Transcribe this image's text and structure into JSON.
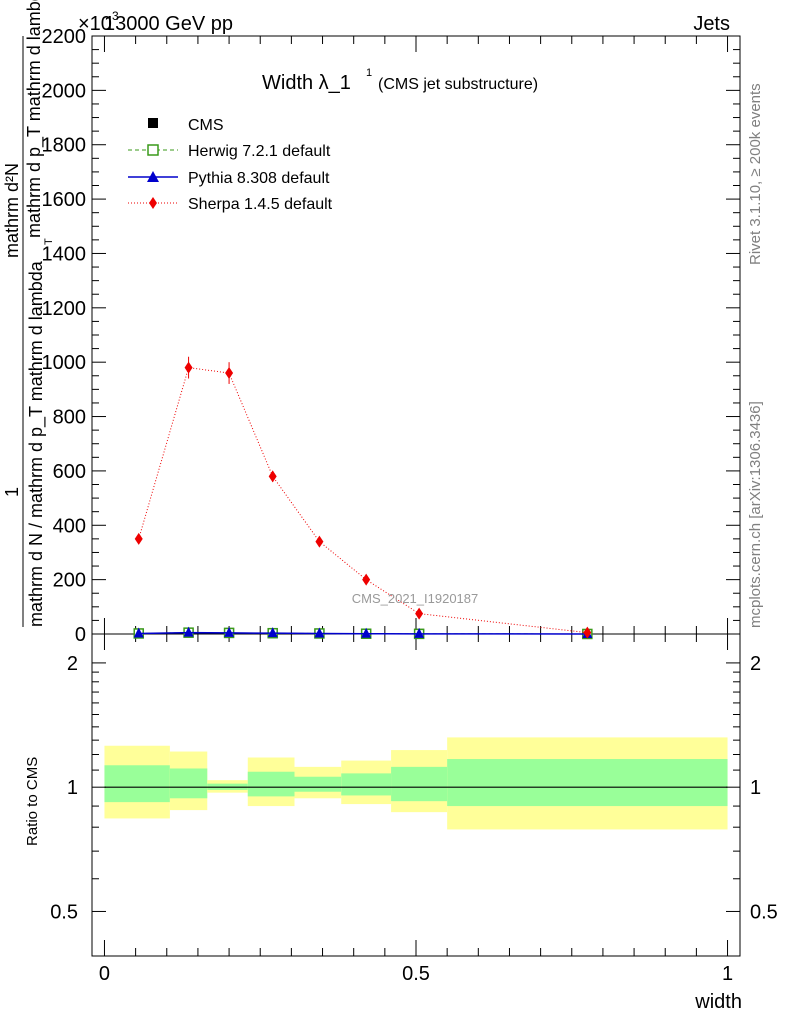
{
  "header": {
    "left": "13000 GeV pp",
    "right": "Jets",
    "exponent": "×10",
    "exponent_power": "3"
  },
  "side_text": {
    "rivet": "Rivet 3.1.10, ≥ 200k events",
    "mcplots": "mcplots.cern.ch [arXiv:1306.3436]"
  },
  "chart_data": [
    {
      "type": "line",
      "title": "Width λ_1",
      "title_sup": "1",
      "subtitle": "(CMS jet substructure)",
      "watermark": "CMS_2021_I1920187",
      "ylabel_main": "mathrm d N / mathrm d p_T mathrm d lambda",
      "ylabel_num": "mathrm d²N",
      "ylabel_den": "mathrm d p_T mathrm d lambda",
      "ylabel_one": "1",
      "ylabel_sub": "T",
      "ylim": [
        0,
        2200
      ],
      "y_scale_note": "×10^3",
      "yticks": [
        0,
        200,
        400,
        600,
        800,
        1000,
        1200,
        1400,
        1600,
        1800,
        2000,
        2200
      ],
      "ytick_labels": [
        "0",
        "200",
        "400",
        "600",
        "800",
        "1000",
        "1200",
        "1400",
        "1600",
        "1800",
        "2000",
        "2200"
      ],
      "xlim": [
        -0.02,
        1.02
      ],
      "series": [
        {
          "name": "CMS",
          "style": "marker-square",
          "color": "#000000",
          "x": [
            0.055,
            0.135,
            0.2,
            0.27,
            0.345,
            0.42,
            0.505,
            0.775
          ],
          "y": [
            2,
            5,
            4,
            3,
            2,
            1,
            0.5,
            0.1
          ]
        },
        {
          "name": "Herwig 7.2.1 default",
          "style": "dashed-open-square",
          "color": "#3a9a1a",
          "x": [
            0.055,
            0.135,
            0.2,
            0.27,
            0.345,
            0.42,
            0.505,
            0.775
          ],
          "y": [
            2,
            5,
            4,
            3,
            2,
            1,
            0.5,
            0.1
          ]
        },
        {
          "name": "Pythia 8.308 default",
          "style": "solid-triangle",
          "color": "#0000cc",
          "x": [
            0.055,
            0.135,
            0.2,
            0.27,
            0.345,
            0.42,
            0.505,
            0.775
          ],
          "y": [
            2,
            5,
            4,
            3,
            2,
            1,
            0.5,
            0.1
          ]
        },
        {
          "name": "Sherpa 1.4.5 default",
          "style": "dotted-diamond",
          "color": "#ee0000",
          "x": [
            0.055,
            0.135,
            0.2,
            0.27,
            0.345,
            0.42,
            0.505,
            0.775
          ],
          "y": [
            350,
            980,
            960,
            580,
            340,
            200,
            75,
            5
          ],
          "err": [
            10,
            40,
            40,
            20,
            15,
            10,
            5,
            2
          ]
        }
      ]
    },
    {
      "type": "area",
      "ylabel": "Ratio to CMS",
      "xlabel": "width",
      "ylim": [
        0.39,
        2.35
      ],
      "log_y": true,
      "yticks": [
        0.5,
        1,
        2
      ],
      "ytick_labels": [
        "0.5",
        "1",
        "2"
      ],
      "xlim": [
        -0.02,
        1.02
      ],
      "xticks": [
        0,
        0.5,
        1
      ],
      "xtick_labels": [
        "0",
        "0.5",
        "1"
      ],
      "reference": 1,
      "bands": [
        {
          "x0": 0.0,
          "x1": 0.105,
          "inner": [
            0.92,
            1.13
          ],
          "outer": [
            0.84,
            1.26
          ]
        },
        {
          "x0": 0.105,
          "x1": 0.165,
          "inner": [
            0.94,
            1.11
          ],
          "outer": [
            0.88,
            1.22
          ]
        },
        {
          "x0": 0.165,
          "x1": 0.23,
          "inner": [
            0.985,
            1.02
          ],
          "outer": [
            0.97,
            1.04
          ]
        },
        {
          "x0": 0.23,
          "x1": 0.305,
          "inner": [
            0.95,
            1.09
          ],
          "outer": [
            0.9,
            1.18
          ]
        },
        {
          "x0": 0.305,
          "x1": 0.38,
          "inner": [
            0.975,
            1.06
          ],
          "outer": [
            0.94,
            1.12
          ]
        },
        {
          "x0": 0.38,
          "x1": 0.46,
          "inner": [
            0.955,
            1.08
          ],
          "outer": [
            0.91,
            1.16
          ]
        },
        {
          "x0": 0.46,
          "x1": 0.55,
          "inner": [
            0.925,
            1.12
          ],
          "outer": [
            0.87,
            1.23
          ]
        },
        {
          "x0": 0.55,
          "x1": 1.0,
          "inner": [
            0.9,
            1.17
          ],
          "outer": [
            0.79,
            1.32
          ]
        }
      ],
      "band_colors": {
        "inner": "#99ff99",
        "outer": "#ffff99"
      }
    }
  ]
}
